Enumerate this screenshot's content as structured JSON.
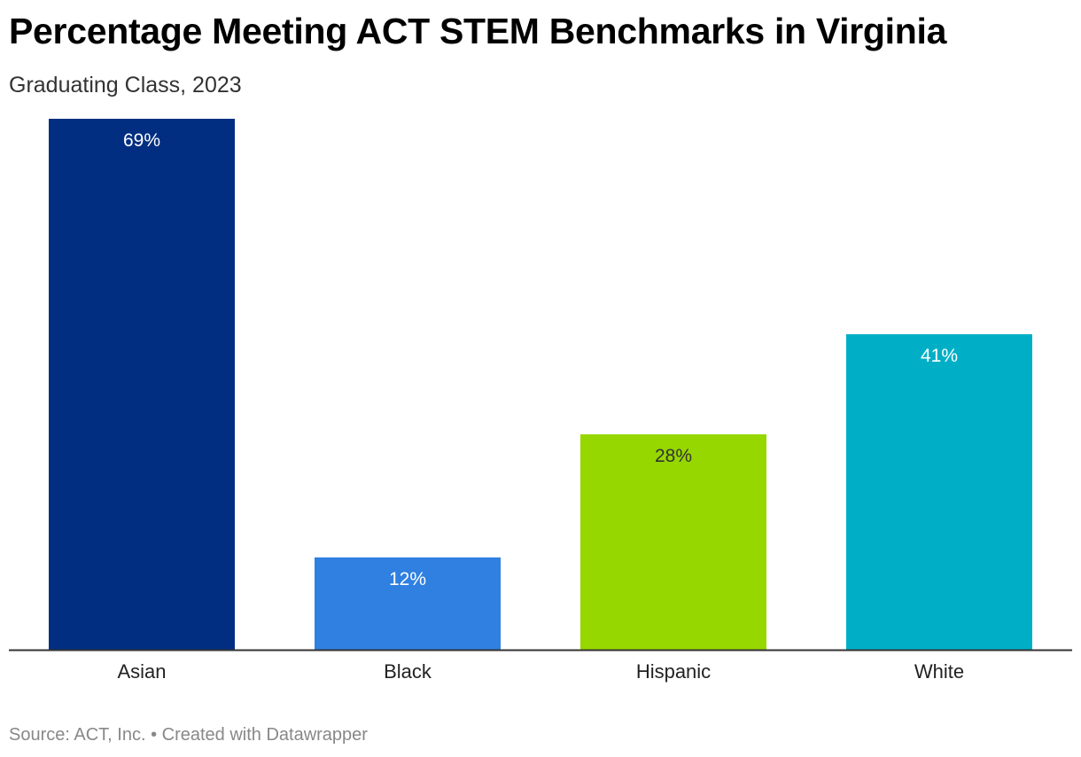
{
  "header": {
    "title": "Percentage Meeting ACT STEM Benchmarks in Virginia",
    "subtitle": "Graduating Class, 2023"
  },
  "footer": {
    "source_text": "Source: ACT, Inc. • Created with Datawrapper"
  },
  "chart_data": {
    "type": "bar",
    "title": "Percentage Meeting ACT STEM Benchmarks in Virginia",
    "subtitle": "Graduating Class, 2023",
    "categories": [
      "Asian",
      "Black",
      "Hispanic",
      "White"
    ],
    "values": [
      69,
      12,
      28,
      41
    ],
    "value_labels": [
      "69%",
      "12%",
      "28%",
      "41%"
    ],
    "colors": [
      "#022e81",
      "#2f80e0",
      "#96d700",
      "#00afc6"
    ],
    "label_colors": [
      "#ffffff",
      "#ffffff",
      "#333333",
      "#ffffff"
    ],
    "xlabel": "",
    "ylabel": "",
    "ylim": [
      0,
      69
    ],
    "grid": false,
    "legend": "none"
  }
}
